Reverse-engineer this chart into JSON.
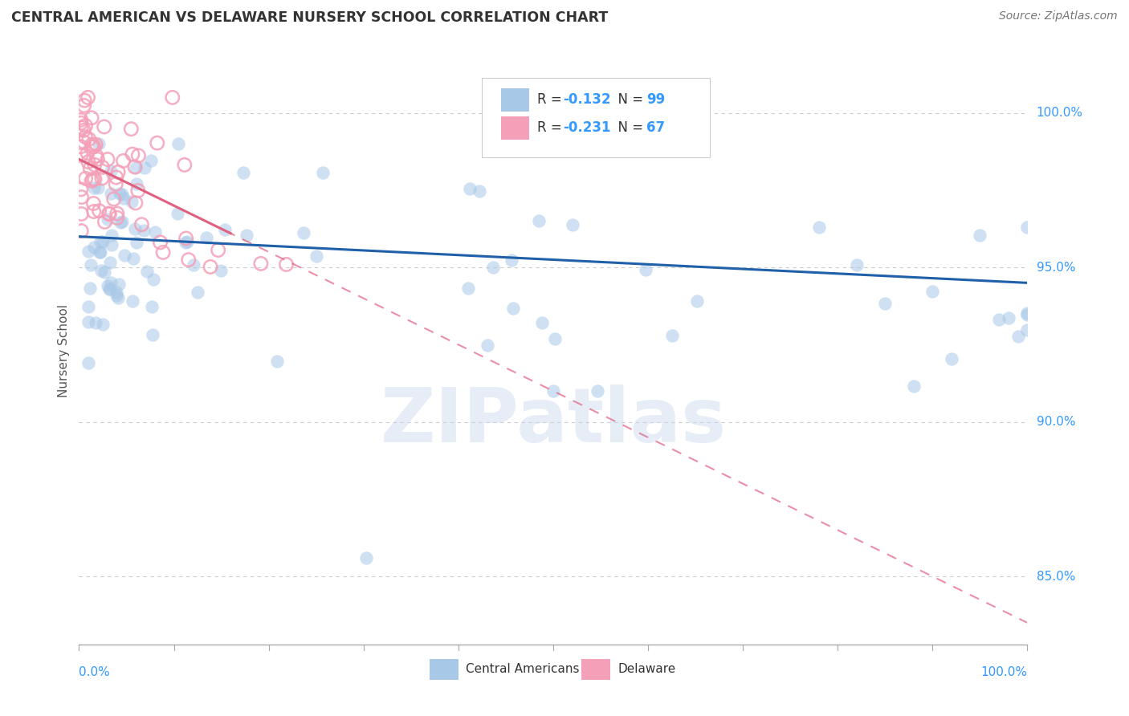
{
  "title": "CENTRAL AMERICAN VS DELAWARE NURSERY SCHOOL CORRELATION CHART",
  "source": "Source: ZipAtlas.com",
  "ylabel": "Nursery School",
  "yticks": [
    0.85,
    0.9,
    0.95,
    1.0
  ],
  "ytick_labels": [
    "85.0%",
    "90.0%",
    "95.0%",
    "100.0%"
  ],
  "xmin": 0.0,
  "xmax": 1.0,
  "ymin": 0.828,
  "ymax": 1.018,
  "blue_R": -0.132,
  "blue_N": 99,
  "pink_R": -0.231,
  "pink_N": 67,
  "blue_scatter_color": "#A8C8E8",
  "pink_scatter_color": "#F4A0B8",
  "blue_line_color": "#2060A8",
  "pink_line_color": "#E06080",
  "grid_color": "#CCCCCC",
  "watermark": "ZIPatlas",
  "legend_blue_label": "Central Americans",
  "legend_pink_label": "Delaware",
  "legend_blue_box": "#A8C8E8",
  "legend_pink_box": "#F4A0B8"
}
